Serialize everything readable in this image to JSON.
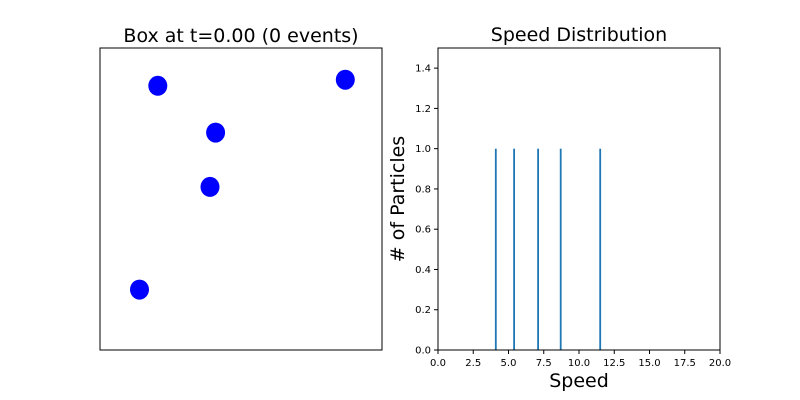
{
  "chart_data": [
    {
      "type": "scatter",
      "title": "Box at t=0.00 (0 events)",
      "xlabel": "",
      "ylabel": "",
      "axes_ticks_visible": false,
      "xlim": [
        0,
        1
      ],
      "ylim": [
        0,
        1
      ],
      "grid": false,
      "marker_color": "#0000ff",
      "points": [
        {
          "x": 0.205,
          "y": 0.875
        },
        {
          "x": 0.41,
          "y": 0.72
        },
        {
          "x": 0.39,
          "y": 0.54
        },
        {
          "x": 0.87,
          "y": 0.895
        },
        {
          "x": 0.14,
          "y": 0.2
        }
      ]
    },
    {
      "type": "bar",
      "title": "Speed Distribution",
      "xlabel": "Speed",
      "ylabel": "# of Particles",
      "xlim": [
        0,
        20
      ],
      "ylim": [
        0,
        1.5
      ],
      "grid": false,
      "bar_color": "#1f77b4",
      "x_ticks": [
        "0.0",
        "2.5",
        "5.0",
        "7.5",
        "10.0",
        "12.5",
        "15.0",
        "17.5",
        "20.0"
      ],
      "y_ticks": [
        "0.0",
        "0.2",
        "0.4",
        "0.6",
        "0.8",
        "1.0",
        "1.2",
        "1.4"
      ],
      "x": [
        4.1,
        5.4,
        7.1,
        8.7,
        11.5
      ],
      "values": [
        1,
        1,
        1,
        1,
        1
      ]
    }
  ]
}
